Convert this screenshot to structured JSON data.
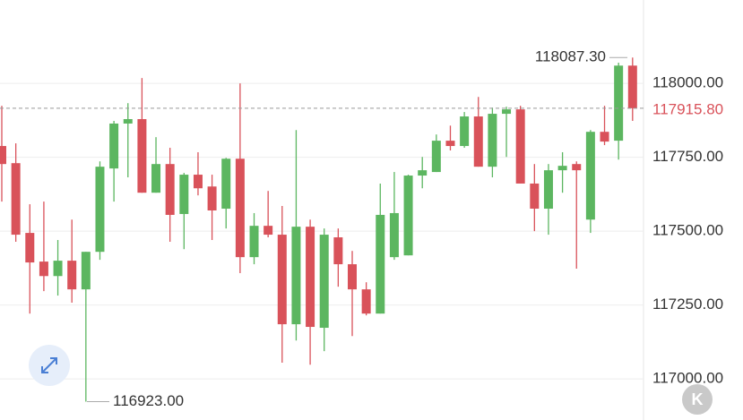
{
  "chart_data": {
    "type": "candlestick",
    "series": [
      {
        "name": "open",
        "values": [
          117788,
          117730,
          117494,
          117397,
          117348,
          117400,
          117303,
          117430,
          117712,
          117864,
          117879,
          117630,
          117727,
          117558,
          117691,
          117651,
          117576,
          117745,
          117412,
          117518,
          117488,
          117185,
          117515,
          117173,
          117479,
          117388,
          117303,
          117221,
          117412,
          117418,
          117688,
          117700,
          117806,
          117788,
          117888,
          117718,
          117897,
          117912,
          117661,
          117576,
          117706,
          117727,
          117539,
          117836,
          117806,
          118060
        ]
      },
      {
        "name": "high",
        "values": [
          117924,
          117797,
          117591,
          117600,
          117470,
          117539,
          117430,
          117736,
          117873,
          117933,
          118018,
          117818,
          117782,
          117697,
          117767,
          117691,
          117748,
          118000,
          117561,
          117636,
          117585,
          117842,
          117539,
          117509,
          117509,
          117433,
          117327,
          117661,
          117700,
          117691,
          117751,
          117827,
          117857,
          117903,
          117954,
          117918,
          117921,
          117924,
          117727,
          117727,
          117767,
          117736,
          117842,
          117924,
          118070,
          118087.3
        ]
      },
      {
        "name": "low",
        "values": [
          117600,
          117464,
          117221,
          117297,
          117282,
          117258,
          116923,
          117403,
          117600,
          117682,
          117630,
          117630,
          117464,
          117439,
          117621,
          117470,
          117509,
          117358,
          117388,
          117479,
          117055,
          117130,
          117048,
          117094,
          117312,
          117145,
          117215,
          117221,
          117403,
          117418,
          117645,
          117700,
          117773,
          117782,
          117718,
          117682,
          117751,
          117661,
          117500,
          117488,
          117630,
          117373,
          117494,
          117791,
          117742,
          117873
        ]
      },
      {
        "name": "close",
        "values": [
          117727,
          117488,
          117394,
          117348,
          117400,
          117303,
          117430,
          117718,
          117864,
          117879,
          117630,
          117727,
          117555,
          117691,
          117645,
          117570,
          117745,
          117412,
          117518,
          117488,
          117185,
          117515,
          117176,
          117488,
          117388,
          117303,
          117221,
          117555,
          117561,
          117688,
          117706,
          117806,
          117788,
          117888,
          117718,
          117897,
          117912,
          117661,
          117576,
          117706,
          117721,
          117706,
          117836,
          117803,
          118060,
          117915.8
        ]
      }
    ],
    "up_color": "#5cb660",
    "down_color": "#d9525a",
    "ylim": [
      116861,
      118282
    ],
    "yticks": [
      {
        "value": 117000,
        "label": "117000.00"
      },
      {
        "value": 117250,
        "label": "117250.00"
      },
      {
        "value": 117500,
        "label": "117500.00"
      },
      {
        "value": 117750,
        "label": "117750.00"
      },
      {
        "value": 118000,
        "label": "118000.00"
      }
    ],
    "grid": true,
    "high_marker": {
      "value": 118087.3,
      "label": "118087.30"
    },
    "low_marker": {
      "value": 116923,
      "label": "116923.00"
    },
    "last_price": {
      "value": 117915.8,
      "label": "117915.80"
    }
  },
  "controls": {
    "badge": "K"
  }
}
